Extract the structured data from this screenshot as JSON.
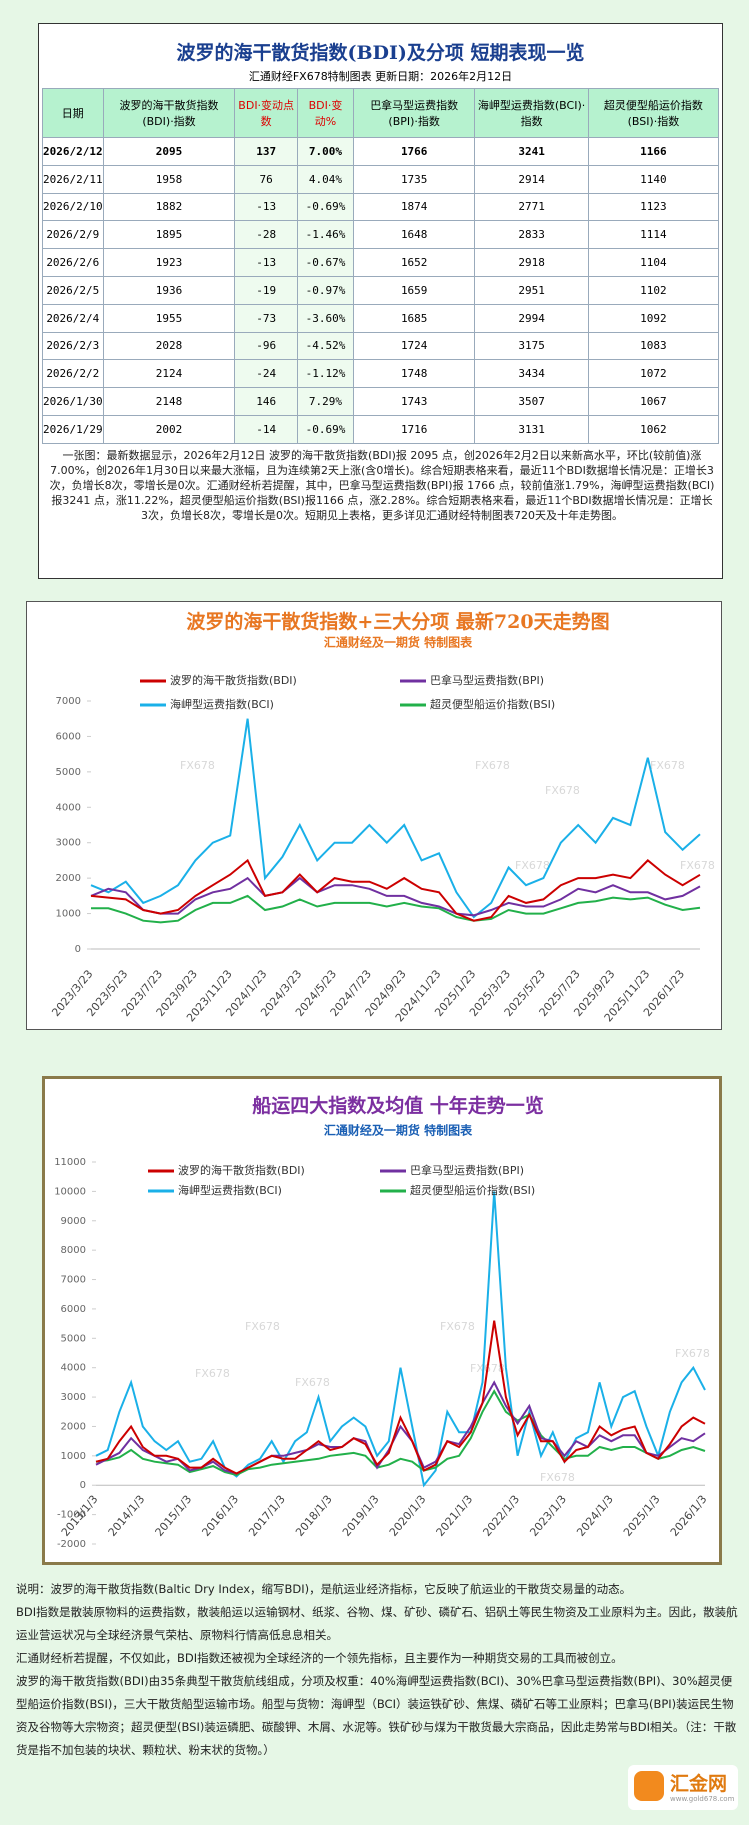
{
  "header": {
    "title": "波罗的海干散货指数(BDI)及分项  短期表现一览",
    "subtitle": "汇通财经FX678特制图表      更新日期：2026年2月12日"
  },
  "table": {
    "columns": [
      "日期",
      "波罗的海干散货指数(BDI)·指数",
      "BDI·变动点数",
      "BDI·变动%",
      "巴拿马型运费指数(BPI)·指数",
      "海岬型运费指数(BCI)·指数",
      "超灵便型船运价指数(BSI)·指数"
    ],
    "rows": [
      [
        "2026/2/12",
        "2095",
        "137",
        "7.00%",
        "1766",
        "3241",
        "1166"
      ],
      [
        "2026/2/11",
        "1958",
        "76",
        "4.04%",
        "1735",
        "2914",
        "1140"
      ],
      [
        "2026/2/10",
        "1882",
        "-13",
        "-0.69%",
        "1874",
        "2771",
        "1123"
      ],
      [
        "2026/2/9",
        "1895",
        "-28",
        "-1.46%",
        "1648",
        "2833",
        "1114"
      ],
      [
        "2026/2/6",
        "1923",
        "-13",
        "-0.67%",
        "1652",
        "2918",
        "1104"
      ],
      [
        "2026/2/5",
        "1936",
        "-19",
        "-0.97%",
        "1659",
        "2951",
        "1102"
      ],
      [
        "2026/2/4",
        "1955",
        "-73",
        "-3.60%",
        "1685",
        "2994",
        "1092"
      ],
      [
        "2026/2/3",
        "2028",
        "-96",
        "-4.52%",
        "1724",
        "3175",
        "1083"
      ],
      [
        "2026/2/2",
        "2124",
        "-24",
        "-1.12%",
        "1748",
        "3434",
        "1072"
      ],
      [
        "2026/1/30",
        "2148",
        "146",
        "7.29%",
        "1743",
        "3507",
        "1067"
      ],
      [
        "2026/1/29",
        "2002",
        "-14",
        "-0.69%",
        "1716",
        "3131",
        "1062"
      ]
    ]
  },
  "summary": "一张图：最新数据显示，2026年2月12日 波罗的海干散货指数(BDI)报 2095 点，创2026年2月2日以来新高水平，环比(较前值)涨7.00%，创2026年1月30日以来最大涨幅，且为连续第2天上涨(含0增长)。综合短期表格来看，最近11个BDI数据增长情况是：正增长3次，负增长8次，零增长是0次。汇通财经析若提醒，其中，巴拿马型运费指数(BPI)报 1766 点，较前值涨1.79%，海岬型运费指数(BCI)报3241 点，涨11.22%，超灵便型船运价指数(BSI)报1166 点，涨2.28%。综合短期表格来看，最近11个BDI数据增长情况是：正增长3次，负增长8次，零增长是0次。短期见上表格，更多详见汇通财经特制图表720天及十年走势图。",
  "chart_data": [
    {
      "type": "line",
      "title": "波罗的海干散货指数+三大分项  最新720天走势图",
      "subtitle": "汇通财经及一期货  特制图表",
      "watermark": "FX678",
      "categories": [
        "2023/3/23",
        null,
        "2023/5/23",
        null,
        "2023/7/23",
        null,
        "2023/9/23",
        null,
        "2023/11/23",
        null,
        "2024/1/23",
        null,
        "2024/3/23",
        null,
        "2024/5/23",
        null,
        "2024/7/23",
        null,
        "2024/9/23",
        null,
        "2024/11/23",
        null,
        "2025/1/23",
        null,
        "2025/3/23",
        null,
        "2025/5/23",
        null,
        "2025/7/23",
        null,
        "2025/9/23",
        null,
        "2025/11/23",
        null,
        "2026/1/23",
        null
      ],
      "ylim": [
        0,
        7000
      ],
      "yticks": [
        0,
        1000,
        2000,
        3000,
        4000,
        5000,
        6000,
        7000
      ],
      "series": [
        {
          "name": "波罗的海干散货指数(BDI)",
          "color": "#cc0000",
          "values": [
            1500,
            1450,
            1400,
            1100,
            1000,
            1100,
            1500,
            1800,
            2100,
            2500,
            1500,
            1600,
            2100,
            1600,
            2000,
            1900,
            1900,
            1700,
            2000,
            1700,
            1600,
            1000,
            800,
            900,
            1500,
            1300,
            1400,
            1800,
            2000,
            2000,
            2100,
            2000,
            2500,
            2100,
            1800,
            2095
          ]
        },
        {
          "name": "巴拿马型运费指数(BPI)",
          "color": "#7030a0",
          "values": [
            1500,
            1700,
            1600,
            1100,
            1000,
            1000,
            1400,
            1600,
            1700,
            2000,
            1500,
            1600,
            2000,
            1600,
            1800,
            1800,
            1700,
            1500,
            1500,
            1300,
            1200,
            1000,
            950,
            1100,
            1300,
            1200,
            1200,
            1400,
            1700,
            1600,
            1800,
            1600,
            1600,
            1400,
            1500,
            1766
          ]
        },
        {
          "name": "海岬型运费指数(BCI)",
          "color": "#1ab0e8",
          "values": [
            1800,
            1600,
            1900,
            1300,
            1500,
            1800,
            2500,
            3000,
            3200,
            6500,
            2000,
            2600,
            3500,
            2500,
            3000,
            3000,
            3500,
            3000,
            3500,
            2500,
            2700,
            1600,
            900,
            1300,
            2300,
            1800,
            2000,
            3000,
            3500,
            3000,
            3700,
            3500,
            5400,
            3300,
            2800,
            3241
          ]
        },
        {
          "name": "超灵便型船运价指数(BSI)",
          "color": "#22b04a",
          "values": [
            1150,
            1150,
            1000,
            800,
            750,
            800,
            1100,
            1300,
            1300,
            1500,
            1100,
            1200,
            1400,
            1200,
            1300,
            1300,
            1300,
            1200,
            1300,
            1200,
            1150,
            900,
            800,
            850,
            1100,
            1000,
            1000,
            1150,
            1300,
            1350,
            1450,
            1400,
            1450,
            1250,
            1100,
            1166
          ]
        }
      ]
    },
    {
      "type": "line",
      "title": "船运四大指数及均值 十年走势一览",
      "subtitle": "汇通财经及一期货 特制图表",
      "watermark": "FX678",
      "categories": [
        "2013/1/3",
        null,
        null,
        null,
        "2014/1/3",
        null,
        null,
        null,
        "2015/1/3",
        null,
        null,
        null,
        "2016/1/3",
        null,
        null,
        null,
        "2017/1/3",
        null,
        null,
        null,
        "2018/1/3",
        null,
        null,
        null,
        "2019/1/3",
        null,
        null,
        null,
        "2020/1/3",
        null,
        null,
        null,
        "2021/1/3",
        null,
        null,
        null,
        "2022/1/3",
        null,
        null,
        null,
        "2023/1/3",
        null,
        null,
        null,
        "2024/1/3",
        null,
        null,
        null,
        "2025/1/3",
        null,
        null,
        null,
        "2026/1/3"
      ],
      "ylim": [
        -2000,
        11000
      ],
      "yticks": [
        -2000,
        -1000,
        0,
        1000,
        2000,
        3000,
        4000,
        5000,
        6000,
        7000,
        8000,
        9000,
        10000,
        11000
      ],
      "series": [
        {
          "name": "波罗的海干散货指数(BDI)",
          "color": "#cc0000",
          "values": [
            800,
            900,
            1500,
            2000,
            1300,
            1000,
            1000,
            900,
            600,
            600,
            900,
            600,
            400,
            600,
            800,
            1000,
            900,
            900,
            1200,
            1500,
            1200,
            1300,
            1600,
            1400,
            700,
            1100,
            2300,
            1500,
            500,
            700,
            1500,
            1300,
            1800,
            2800,
            5600,
            3000,
            1700,
            2400,
            1500,
            1500,
            800,
            1200,
            1300,
            2000,
            1700,
            1900,
            2000,
            1100,
            900,
            1400,
            2000,
            2300,
            2095
          ]
        },
        {
          "name": "巴拿马型运费指数(BPI)",
          "color": "#7030a0",
          "values": [
            700,
            900,
            1100,
            1600,
            1200,
            1000,
            800,
            900,
            500,
            600,
            800,
            500,
            400,
            600,
            800,
            1000,
            1000,
            1100,
            1200,
            1400,
            1300,
            1300,
            1600,
            1500,
            600,
            1200,
            2000,
            1500,
            600,
            800,
            1500,
            1400,
            2000,
            2800,
            3500,
            2700,
            2100,
            2700,
            1600,
            1500,
            1000,
            1500,
            1300,
            1700,
            1500,
            1700,
            1700,
            1100,
            1000,
            1300,
            1600,
            1500,
            1766
          ]
        },
        {
          "name": "海岬型运费指数(BCI)",
          "color": "#1ab0e8",
          "values": [
            1000,
            1200,
            2500,
            3500,
            2000,
            1500,
            1200,
            1500,
            800,
            900,
            1500,
            600,
            300,
            700,
            900,
            1500,
            800,
            1500,
            1800,
            3000,
            1500,
            2000,
            2300,
            2000,
            1000,
            1500,
            4000,
            2000,
            0,
            500,
            2500,
            1800,
            1800,
            3500,
            10000,
            4000,
            1000,
            2500,
            1000,
            1800,
            800,
            1600,
            1800,
            3500,
            2000,
            3000,
            3200,
            2000,
            1000,
            2500,
            3500,
            4000,
            3241
          ]
        },
        {
          "name": "超灵便型船运价指数(BSI)",
          "color": "#22b04a",
          "values": [
            800,
            850,
            950,
            1200,
            900,
            800,
            750,
            700,
            450,
            550,
            650,
            450,
            350,
            550,
            600,
            700,
            750,
            800,
            850,
            900,
            1000,
            1050,
            1100,
            1000,
            600,
            700,
            900,
            800,
            500,
            600,
            900,
            1000,
            1600,
            2500,
            3200,
            2500,
            2200,
            2400,
            1700,
            1300,
            900,
            1000,
            1000,
            1300,
            1200,
            1300,
            1300,
            1100,
            900,
            1000,
            1200,
            1300,
            1166
          ]
        }
      ]
    }
  ],
  "notes": [
    "说明：波罗的海干散货指数(Baltic Dry Index，缩写BDI)，是航运业经济指标，它反映了航运业的干散货交易量的动态。",
    "BDI指数是散装原物料的运费指数，散装船运以运输钢材、纸浆、谷物、煤、矿砂、磷矿石、铝矾土等民生物资及工业原料为主。因此，散装航运业营运状况与全球经济景气荣枯、原物料行情高低息息相关。",
    "汇通财经析若提醒，不仅如此，BDI指数还被视为全球经济的一个领先指标，且主要作为一种期货交易的工具而被创立。",
    "波罗的海干散货指数(BDI)由35条典型干散货航线组成，分项及权重：40%海岬型运费指数(BCI)、30%巴拿马型运费指数(BPI)、30%超灵便型船运价指数(BSI)，三大干散货船型运输市场。船型与货物：海岬型（BCI）装运铁矿砂、焦煤、磷矿石等工业原料；巴拿马(BPI)装运民生物资及谷物等大宗物资；超灵便型(BSI)装运磷肥、碳酸钾、木屑、水泥等。铁矿砂与煤为干散货最大宗商品，因此走势常与BDI相关。（注：干散货是指不加包装的块状、颗粒状、粉末状的货物。）"
  ],
  "logo": {
    "name": "汇金网",
    "url": "www.gold678.com"
  }
}
